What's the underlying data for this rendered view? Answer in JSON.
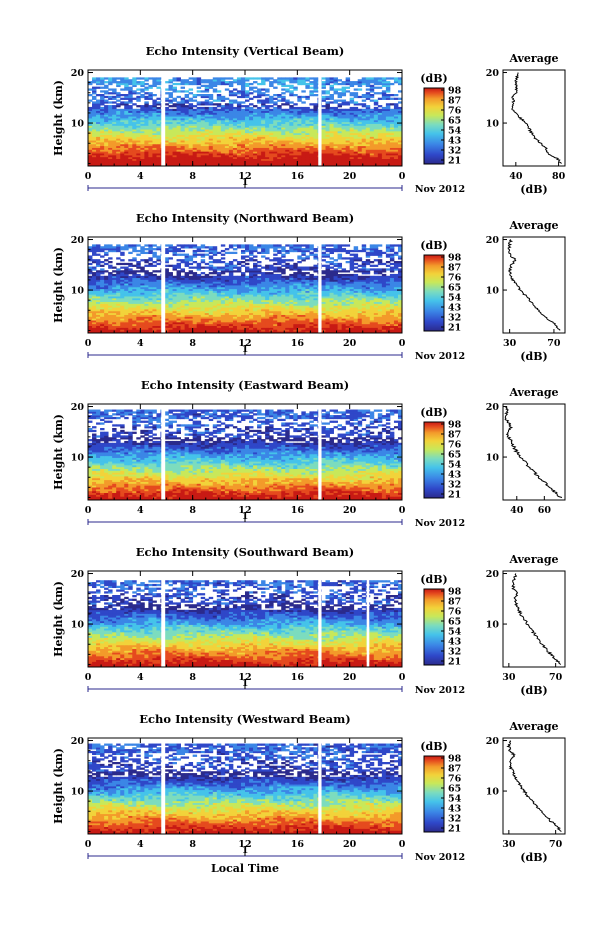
{
  "chart_data": [
    {
      "type": "heatmap",
      "title": "Echo Intensity (Vertical Beam)",
      "ylabel": "Height (km)",
      "xlabel": "",
      "x_ticks": [
        "0",
        "4",
        "8",
        "12",
        "16",
        "20",
        "0"
      ],
      "y_ticks": [
        "10",
        "20"
      ],
      "xlim": [
        0,
        24
      ],
      "ylim": [
        1.5,
        20.5
      ],
      "day_label": "1",
      "month_label": "Nov 2012",
      "colorbar_title": "(dB)",
      "colorbar_ticks": [
        "98",
        "87",
        "76",
        "65",
        "54",
        "43",
        "32",
        "21"
      ],
      "data_gaps_hours": [
        [
          5.6,
          5.9
        ],
        [
          17.6,
          17.85
        ]
      ],
      "top_cutoff_km": 19.0,
      "profile_title": "Average",
      "profile_xlabel": "(dB)",
      "profile_xticks": [
        "40",
        "80"
      ],
      "profile_xlim": [
        28,
        86
      ],
      "profile": {
        "height_km": [
          2,
          3,
          4,
          5,
          6,
          7,
          8,
          9,
          10,
          11,
          12,
          13,
          14,
          15,
          16,
          17,
          18,
          19,
          20
        ],
        "db": [
          82,
          79,
          70,
          68,
          63,
          58,
          55,
          52,
          50,
          44,
          40,
          36,
          38,
          37,
          40,
          41,
          40,
          41,
          42
        ]
      }
    },
    {
      "type": "heatmap",
      "title": "Echo Intensity (Northward Beam)",
      "ylabel": "Height (km)",
      "xlabel": "",
      "x_ticks": [
        "0",
        "4",
        "8",
        "12",
        "16",
        "20",
        "0"
      ],
      "y_ticks": [
        "10",
        "20"
      ],
      "xlim": [
        0,
        24
      ],
      "ylim": [
        1.5,
        20.5
      ],
      "day_label": "1",
      "month_label": "Nov 2012",
      "colorbar_title": "(dB)",
      "colorbar_ticks": [
        "98",
        "87",
        "76",
        "65",
        "54",
        "43",
        "32",
        "21"
      ],
      "data_gaps_hours": [
        [
          5.6,
          5.9
        ],
        [
          17.6,
          17.85
        ]
      ],
      "top_cutoff_km": 19.2,
      "profile_title": "Average",
      "profile_xlabel": "(dB)",
      "profile_xticks": [
        "30",
        "70"
      ],
      "profile_xlim": [
        24,
        80
      ],
      "profile": {
        "height_km": [
          2,
          3,
          4,
          5,
          6,
          7,
          8,
          9,
          10,
          11,
          12,
          13,
          14,
          15,
          16,
          17,
          18,
          19,
          20
        ],
        "db": [
          76,
          72,
          66,
          61,
          56,
          52,
          48,
          44,
          40,
          36,
          33,
          31,
          30,
          32,
          35,
          30,
          29,
          30,
          31
        ]
      }
    },
    {
      "type": "heatmap",
      "title": "Echo Intensity (Eastward Beam)",
      "ylabel": "Height (km)",
      "xlabel": "",
      "x_ticks": [
        "0",
        "4",
        "8",
        "12",
        "16",
        "20",
        "0"
      ],
      "y_ticks": [
        "10",
        "20"
      ],
      "xlim": [
        0,
        24
      ],
      "ylim": [
        1.5,
        20.5
      ],
      "day_label": "1",
      "month_label": "Nov 2012",
      "colorbar_title": "(dB)",
      "colorbar_ticks": [
        "98",
        "87",
        "76",
        "65",
        "54",
        "43",
        "32",
        "21"
      ],
      "data_gaps_hours": [
        [
          5.6,
          5.9
        ],
        [
          17.6,
          17.85
        ]
      ],
      "top_cutoff_km": 19.4,
      "profile_title": "Average",
      "profile_xlabel": "",
      "profile_xticks": [
        "40",
        "60"
      ],
      "profile_xlim": [
        30,
        75
      ],
      "profile": {
        "height_km": [
          2,
          3,
          4,
          5,
          6,
          7,
          8,
          9,
          10,
          11,
          12,
          13,
          14,
          15,
          16,
          17,
          18,
          19,
          20
        ],
        "db": [
          72,
          68,
          64,
          60,
          56,
          53,
          49,
          46,
          43,
          40,
          38,
          36,
          34,
          33,
          36,
          33,
          32,
          33,
          33
        ]
      }
    },
    {
      "type": "heatmap",
      "title": "Echo Intensity (Southward Beam)",
      "ylabel": "Height (km)",
      "xlabel": "",
      "x_ticks": [
        "0",
        "4",
        "8",
        "12",
        "16",
        "20",
        "0"
      ],
      "y_ticks": [
        "10",
        "20"
      ],
      "xlim": [
        0,
        24
      ],
      "ylim": [
        1.5,
        20.5
      ],
      "day_label": "1",
      "month_label": "Nov 2012",
      "colorbar_title": "(dB)",
      "colorbar_ticks": [
        "98",
        "87",
        "76",
        "65",
        "54",
        "43",
        "32",
        "21"
      ],
      "data_gaps_hours": [
        [
          5.6,
          5.9
        ],
        [
          17.6,
          17.85
        ],
        [
          21.3,
          21.5
        ]
      ],
      "top_cutoff_km": 18.8,
      "profile_title": "Average",
      "profile_xlabel": "(dB)",
      "profile_xticks": [
        "30",
        "70"
      ],
      "profile_xlim": [
        25,
        78
      ],
      "profile": {
        "height_km": [
          2,
          3,
          4,
          5,
          6,
          7,
          8,
          9,
          10,
          11,
          12,
          13,
          14,
          15,
          16,
          17,
          18,
          19,
          20
        ],
        "db": [
          74,
          70,
          66,
          62,
          58,
          55,
          52,
          49,
          46,
          43,
          40,
          38,
          36,
          35,
          37,
          34,
          33,
          35,
          36
        ]
      }
    },
    {
      "type": "heatmap",
      "title": "Echo Intensity (Westward Beam)",
      "ylabel": "Height (km)",
      "xlabel": "Local Time",
      "x_ticks": [
        "0",
        "4",
        "8",
        "12",
        "16",
        "20",
        "0"
      ],
      "y_ticks": [
        "10",
        "20"
      ],
      "xlim": [
        0,
        24
      ],
      "ylim": [
        1.5,
        20.5
      ],
      "day_label": "1",
      "month_label": "Nov 2012",
      "colorbar_title": "(dB)",
      "colorbar_ticks": [
        "98",
        "87",
        "76",
        "65",
        "54",
        "43",
        "32",
        "21"
      ],
      "data_gaps_hours": [
        [
          5.6,
          5.9
        ],
        [
          17.6,
          17.85
        ]
      ],
      "top_cutoff_km": 19.3,
      "profile_title": "Average",
      "profile_xlabel": "(dB)",
      "profile_xticks": [
        "30",
        "70"
      ],
      "profile_xlim": [
        25,
        78
      ],
      "profile": {
        "height_km": [
          2,
          3,
          4,
          5,
          6,
          7,
          8,
          9,
          10,
          11,
          12,
          13,
          14,
          15,
          16,
          17,
          18,
          19,
          20
        ],
        "db": [
          75,
          71,
          66,
          62,
          58,
          54,
          50,
          46,
          43,
          40,
          37,
          35,
          33,
          31,
          32,
          35,
          31,
          30,
          31
        ]
      }
    }
  ],
  "colormap": [
    "#2b2a8c",
    "#2f47c8",
    "#3b86e6",
    "#45c3ea",
    "#7cdcbe",
    "#c8e85a",
    "#f2d33a",
    "#f39a2a",
    "#e54a1e",
    "#c81a14"
  ]
}
